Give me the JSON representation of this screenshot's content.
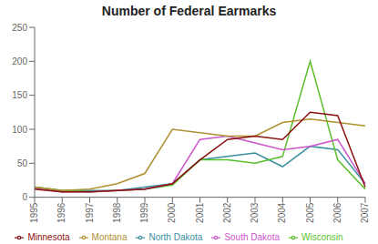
{
  "chart_data": {
    "type": "line",
    "title": "Number of Federal Earmarks",
    "categories": [
      "1995",
      "1996",
      "1997",
      "1998",
      "1999",
      "2000",
      "2001",
      "2002",
      "2003",
      "2004",
      "2005",
      "2006",
      "2007"
    ],
    "series": [
      {
        "name": "North Dakota",
        "color": "#3a8fa0",
        "values": [
          15,
          10,
          10,
          10,
          15,
          20,
          55,
          60,
          65,
          45,
          75,
          70,
          20
        ]
      },
      {
        "name": "Wisconsin",
        "color": "#5abf2a",
        "values": [
          15,
          10,
          8,
          10,
          12,
          18,
          55,
          55,
          50,
          60,
          200,
          55,
          12
        ]
      },
      {
        "name": "South Dakota",
        "color": "#cc55cc",
        "values": [
          13,
          8,
          8,
          10,
          12,
          20,
          85,
          90,
          80,
          70,
          75,
          85,
          20
        ]
      },
      {
        "name": "Montana",
        "color": "#b09030",
        "values": [
          15,
          10,
          12,
          20,
          35,
          100,
          95,
          90,
          90,
          110,
          115,
          110,
          105
        ]
      },
      {
        "name": "Minnesota",
        "color": "#8b1010",
        "values": [
          12,
          8,
          8,
          10,
          12,
          20,
          55,
          85,
          90,
          85,
          125,
          120,
          15
        ]
      }
    ],
    "ylim": [
      0,
      250
    ],
    "yticks": [
      0,
      50,
      100,
      150,
      200,
      250
    ],
    "grid": false,
    "legend": "bottom"
  }
}
